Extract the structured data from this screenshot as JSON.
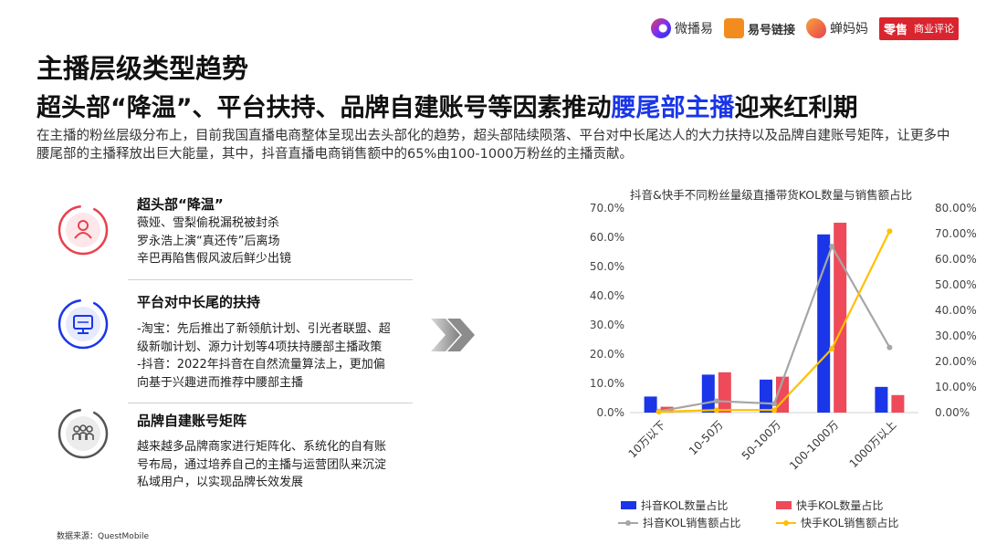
{
  "logos": {
    "wbey": "微播易",
    "yhlj": "易号链接",
    "cmm": "蝉妈妈",
    "ls_brand": "零售",
    "ls_text": "商业评论"
  },
  "header": {
    "title": "主播层级类型趋势",
    "subtitle_prefix": "超头部“降温”、平台扶持、品牌自建账号等因素推动",
    "subtitle_highlight": "腰尾部主播",
    "subtitle_suffix": "迎来红利期"
  },
  "intro": "在主播的粉丝层级分布上，目前我国直播电商整体呈现出去头部化的趋势，超头部陆续陨落、平台对中长尾达人的大力扶持以及品牌自建账号矩阵，让更多中腰尾部的主播释放出巨大能量，其中，抖音直播电商销售额中的65%由100-1000万粉丝的主播贡献。",
  "items": [
    {
      "title": "超头部“降温”",
      "lines": [
        "薇娅、雪梨偷税漏税被封杀",
        "罗永浩上演“真还传”后离场",
        "辛巴再陷售假风波后鲜少出镜"
      ],
      "icon": "person-icon",
      "color": "#e8414f"
    },
    {
      "title": "平台对中长尾的扶持",
      "lines": [
        "-淘宝：先后推出了新领航计划、引光者联盟、超",
        "级新咖计划、源力计划等4项扶持腰部主播政策",
        "-抖音：2022年抖音在自然流量算法上，更加偏",
        "向基于兴趣进而推荐中腰部主播"
      ],
      "icon": "monitor-icon",
      "color": "#1a36e8"
    },
    {
      "title": "品牌自建账号矩阵",
      "lines": [
        "越来越多品牌商家进行矩阵化、系统化的自有账",
        "号布局，通过培养自己的主播与运营团队来沉淀",
        "私域用户，以实现品牌长效发展"
      ],
      "icon": "group-icon",
      "color": "#555555"
    }
  ],
  "source": "数据来源：QuestMobile",
  "chart_data": {
    "type": "bar",
    "title": "抖音&快手不同粉丝量级直播带货KOL数量与销售额占比",
    "categories": [
      "10万以下",
      "10-50万",
      "50-100万",
      "100-1000万",
      "1000万以上"
    ],
    "series": [
      {
        "name": "抖音KOL数量占比",
        "kind": "bar",
        "axis": "left",
        "color": "#1a36e8",
        "values": [
          5.5,
          13.0,
          11.3,
          61.0,
          8.8
        ]
      },
      {
        "name": "快手KOL数量占比",
        "kind": "bar",
        "axis": "left",
        "color": "#ee4a5a",
        "values": [
          2.0,
          13.8,
          12.3,
          65.0,
          6.0
        ]
      },
      {
        "name": "抖音KOL销售额占比",
        "kind": "line",
        "axis": "right",
        "color": "#a6a6a6",
        "values": [
          0.5,
          4.5,
          3.5,
          65.0,
          25.5
        ]
      },
      {
        "name": "快手KOL销售额占比",
        "kind": "line",
        "axis": "right",
        "color": "#ffc000",
        "values": [
          0.3,
          1.0,
          1.0,
          25.0,
          71.0
        ]
      }
    ],
    "yleft": {
      "min": 0,
      "max": 70,
      "step": 10,
      "ticks": [
        "0.0%",
        "10.0%",
        "20.0%",
        "30.0%",
        "40.0%",
        "50.0%",
        "60.0%",
        "70.0%"
      ]
    },
    "yright": {
      "min": 0,
      "max": 80,
      "step": 10,
      "ticks": [
        "0.00%",
        "10.00%",
        "20.00%",
        "30.00%",
        "40.00%",
        "50.00%",
        "60.00%",
        "70.00%",
        "80.00%"
      ]
    },
    "legend_position": "bottom",
    "grid": false
  }
}
